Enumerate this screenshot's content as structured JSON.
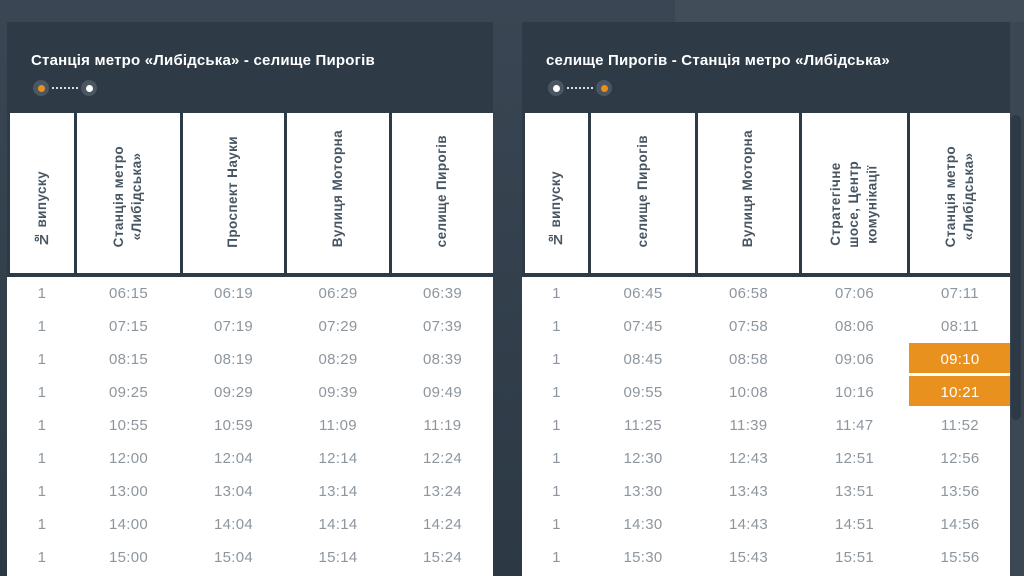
{
  "colors": {
    "accent_orange": "#E8911F",
    "panel_header_bg": "#2E3B47",
    "cell_border": "#2D3B47",
    "body_text": "#8D969E",
    "header_text": "#475562",
    "title_text": "#FFFFFF",
    "highlight_text": "#FFFFFF"
  },
  "tables": [
    {
      "title": "Станція метро «Либідська» - селище Пирогів",
      "route_icon": {
        "start": "#E8911F",
        "end": "#FFFFFF"
      },
      "columns": [
        "№ випуску",
        "Станція метро\n«Либідська»",
        "Проспект Науки",
        "Вулиця Моторна",
        "селище Пирогів"
      ],
      "rows": [
        [
          "1",
          "06:15",
          "06:19",
          "06:29",
          "06:39"
        ],
        [
          "1",
          "07:15",
          "07:19",
          "07:29",
          "07:39"
        ],
        [
          "1",
          "08:15",
          "08:19",
          "08:29",
          "08:39"
        ],
        [
          "1",
          "09:25",
          "09:29",
          "09:39",
          "09:49"
        ],
        [
          "1",
          "10:55",
          "10:59",
          "11:09",
          "11:19"
        ],
        [
          "1",
          "12:00",
          "12:04",
          "12:14",
          "12:24"
        ],
        [
          "1",
          "13:00",
          "13:04",
          "13:14",
          "13:24"
        ],
        [
          "1",
          "14:00",
          "14:04",
          "14:14",
          "14:24"
        ],
        [
          "1",
          "15:00",
          "15:04",
          "15:14",
          "15:24"
        ]
      ],
      "highlights": []
    },
    {
      "title": "селище Пирогів - Станція метро «Либідська»",
      "route_icon": {
        "start": "#FFFFFF",
        "end": "#E8911F"
      },
      "columns": [
        "№ випуску",
        "селище Пирогів",
        "Вулиця Моторна",
        "Стратегічне\nшосе, Центр\nкомунікації",
        "Станція метро\n«Либідська»"
      ],
      "rows": [
        [
          "1",
          "06:45",
          "06:58",
          "07:06",
          "07:11"
        ],
        [
          "1",
          "07:45",
          "07:58",
          "08:06",
          "08:11"
        ],
        [
          "1",
          "08:45",
          "08:58",
          "09:06",
          "09:10"
        ],
        [
          "1",
          "09:55",
          "10:08",
          "10:16",
          "10:21"
        ],
        [
          "1",
          "11:25",
          "11:39",
          "11:47",
          "11:52"
        ],
        [
          "1",
          "12:30",
          "12:43",
          "12:51",
          "12:56"
        ],
        [
          "1",
          "13:30",
          "13:43",
          "13:51",
          "13:56"
        ],
        [
          "1",
          "14:30",
          "14:43",
          "14:51",
          "14:56"
        ],
        [
          "1",
          "15:30",
          "15:43",
          "15:51",
          "15:56"
        ]
      ],
      "highlights": [
        {
          "row": 2,
          "col": 4
        },
        {
          "row": 3,
          "col": 4
        }
      ]
    }
  ]
}
